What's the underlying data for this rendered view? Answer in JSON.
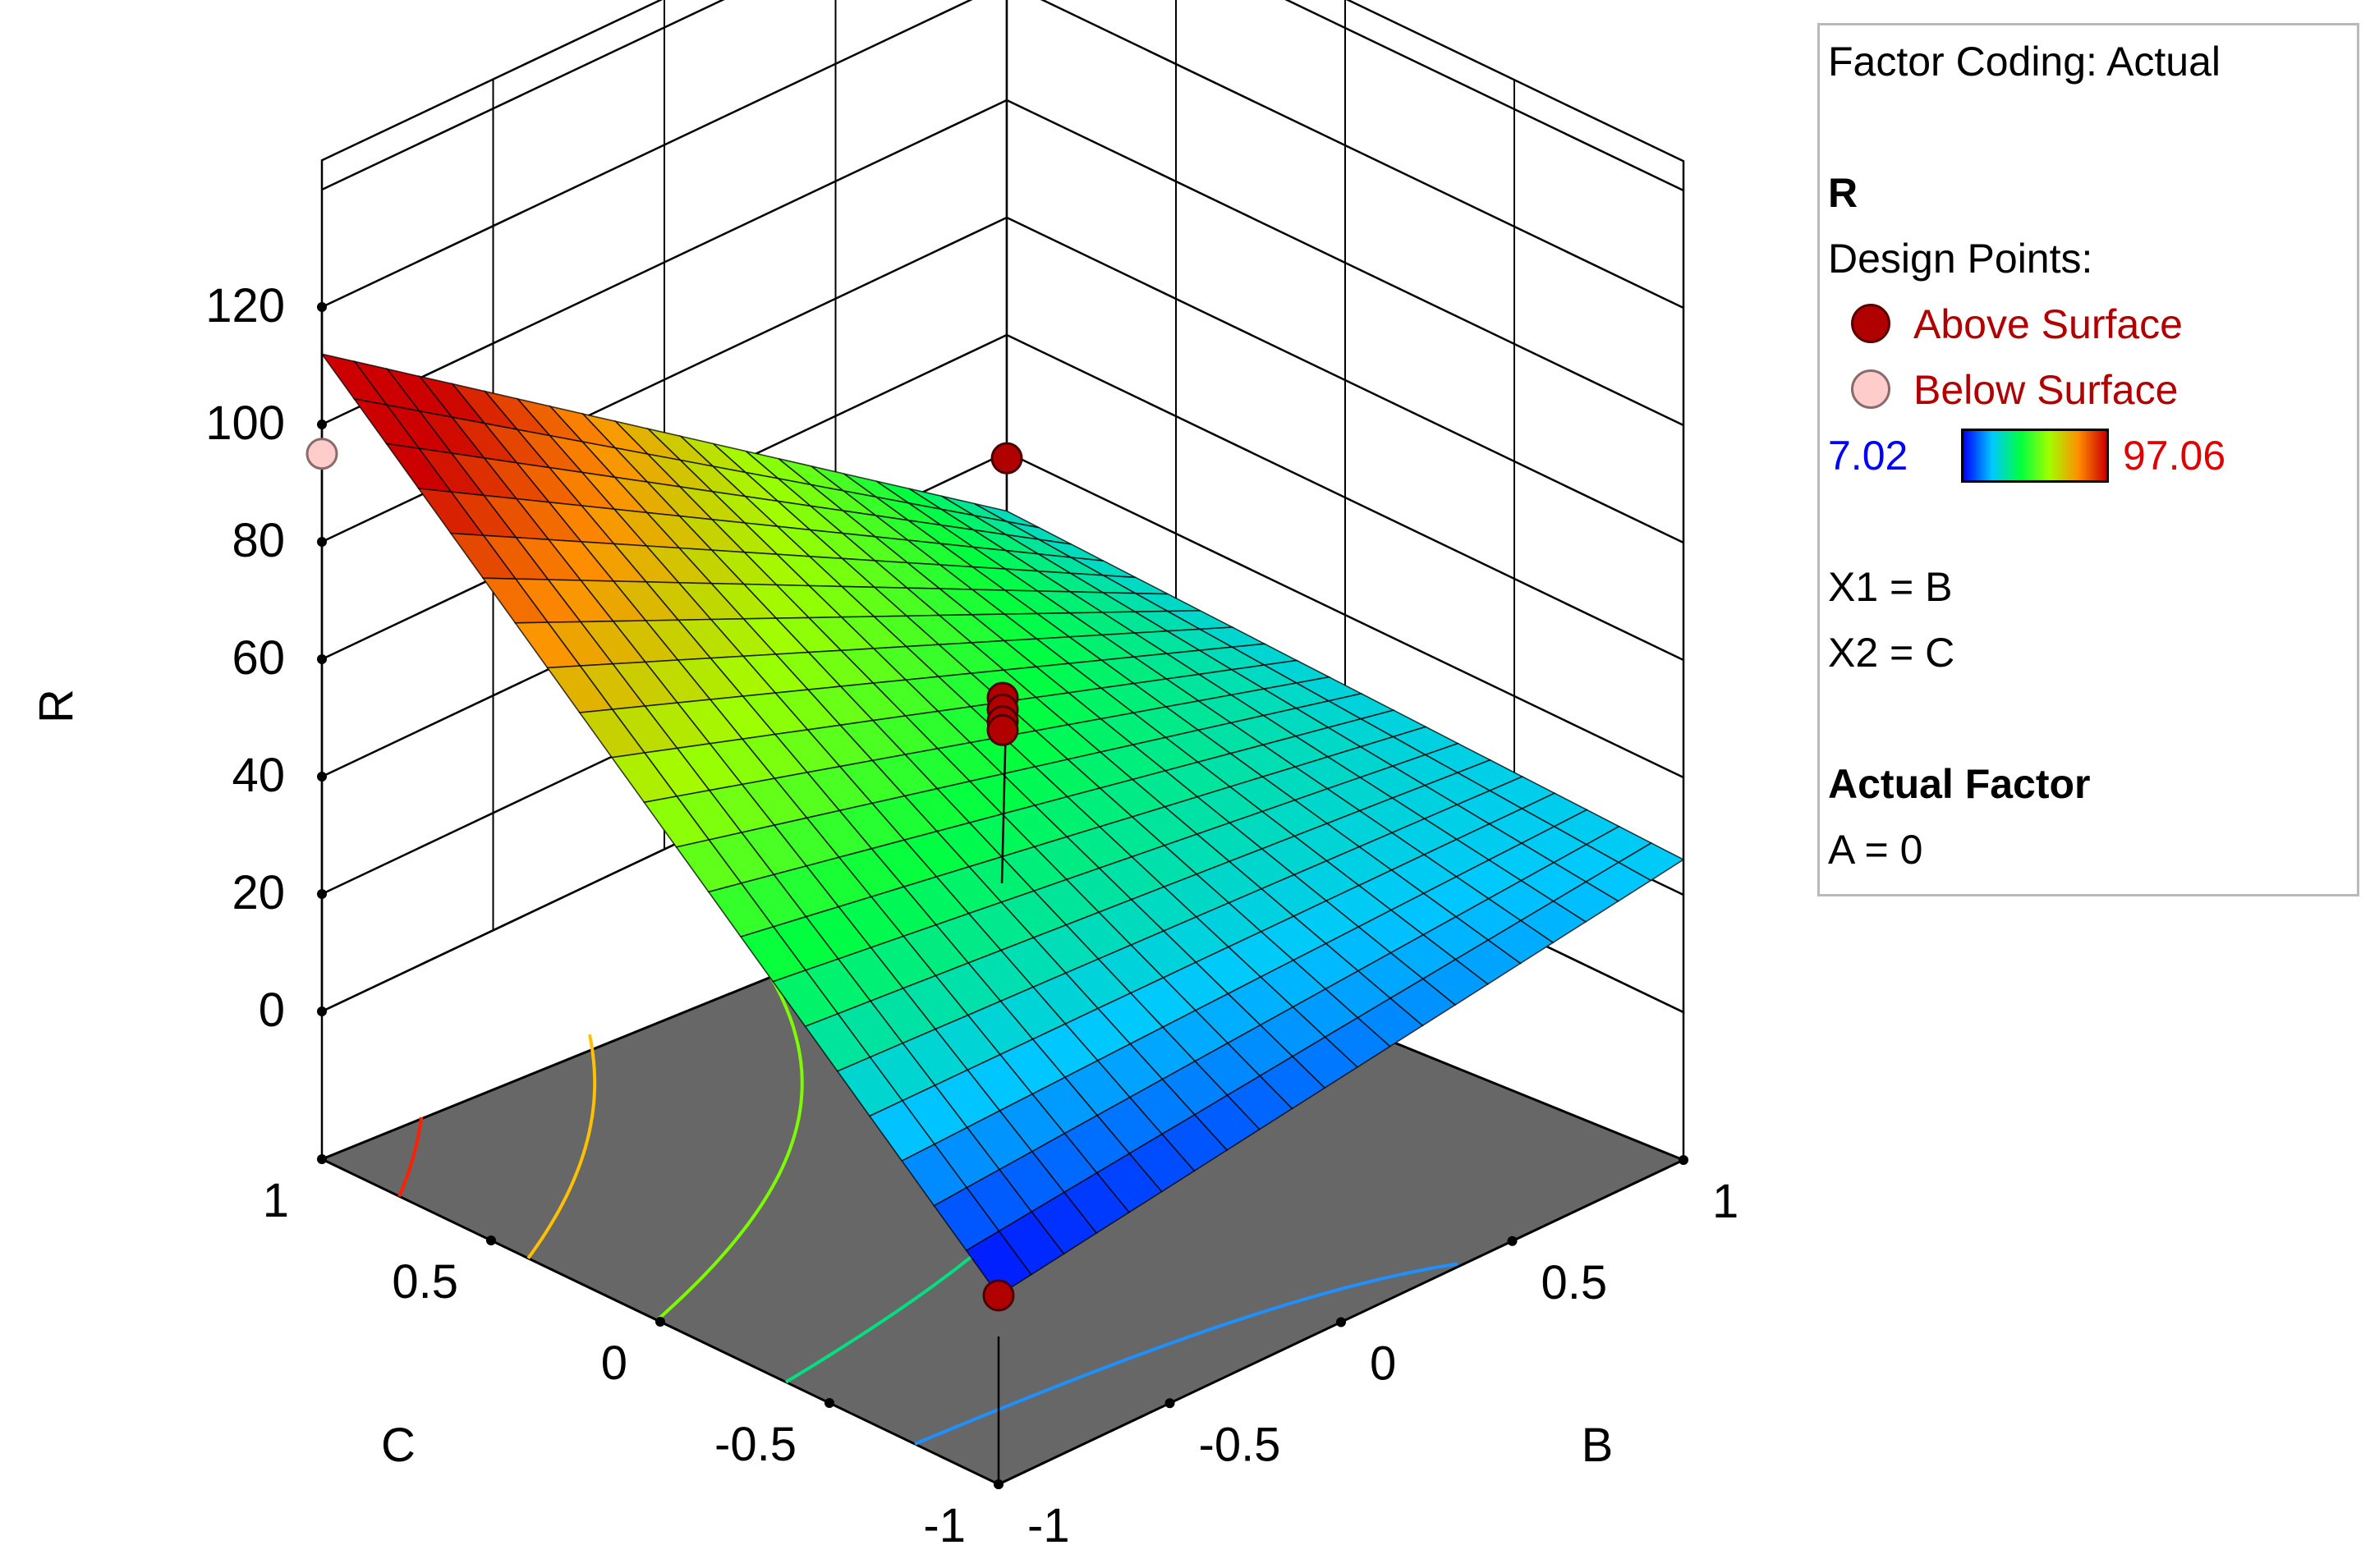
{
  "chart_data": {
    "type": "surface3d",
    "zlabel": "R",
    "xlabel": "B",
    "ylabel": "C",
    "z_ticks": [
      "0",
      "20",
      "40",
      "60",
      "80",
      "100",
      "120"
    ],
    "x_ticks": [
      "-1",
      "-0.5",
      "0",
      "0.5",
      "1"
    ],
    "y_ticks": [
      "-1",
      "-0.5",
      "0",
      "0.5",
      "1"
    ],
    "zlim": [
      0,
      120
    ],
    "xlim": [
      -1,
      1
    ],
    "ylim": [
      -1,
      1
    ],
    "surface_corners": [
      {
        "B": -1,
        "C": -1,
        "R": 7.0
      },
      {
        "B": 1,
        "C": -1,
        "R": 26.0
      },
      {
        "B": -1,
        "C": 1,
        "R": 112.0
      },
      {
        "B": 1,
        "C": 1,
        "R": 30.0
      }
    ],
    "design_points": [
      {
        "B": -1,
        "C": -1,
        "R": 7.0,
        "position": "above"
      },
      {
        "B": 0,
        "C": 0,
        "R": 53.5,
        "position": "above"
      },
      {
        "B": 0,
        "C": 0,
        "R": 51.5,
        "position": "above"
      },
      {
        "B": 0,
        "C": 0,
        "R": 49.5,
        "position": "above"
      },
      {
        "B": 0,
        "C": 0,
        "R": 48.0,
        "position": "above"
      },
      {
        "B": 1,
        "C": 1,
        "R": 39.0,
        "position": "above"
      },
      {
        "B": -1,
        "C": 1,
        "R": 95.0,
        "position": "below"
      }
    ],
    "colormap": [
      "#0000ff",
      "#00c8ff",
      "#00ff40",
      "#a0ff00",
      "#ff9000",
      "#cc0000"
    ],
    "floor_color": "#676767",
    "contour_colors": [
      "#1e90ff",
      "#00e080",
      "#7cfc00",
      "#ffc000",
      "#ff2000"
    ]
  },
  "legend": {
    "factor_coding": "Factor Coding: Actual",
    "response": "R",
    "design_points_label": "Design Points:",
    "above": "Above Surface",
    "below": "Below Surface",
    "color_min": "7.02",
    "color_max": "97.06",
    "x1": "X1 = B",
    "x2": "X2 = C",
    "actual_factor_title": "Actual Factor",
    "actual_factor_value": "A = 0"
  }
}
